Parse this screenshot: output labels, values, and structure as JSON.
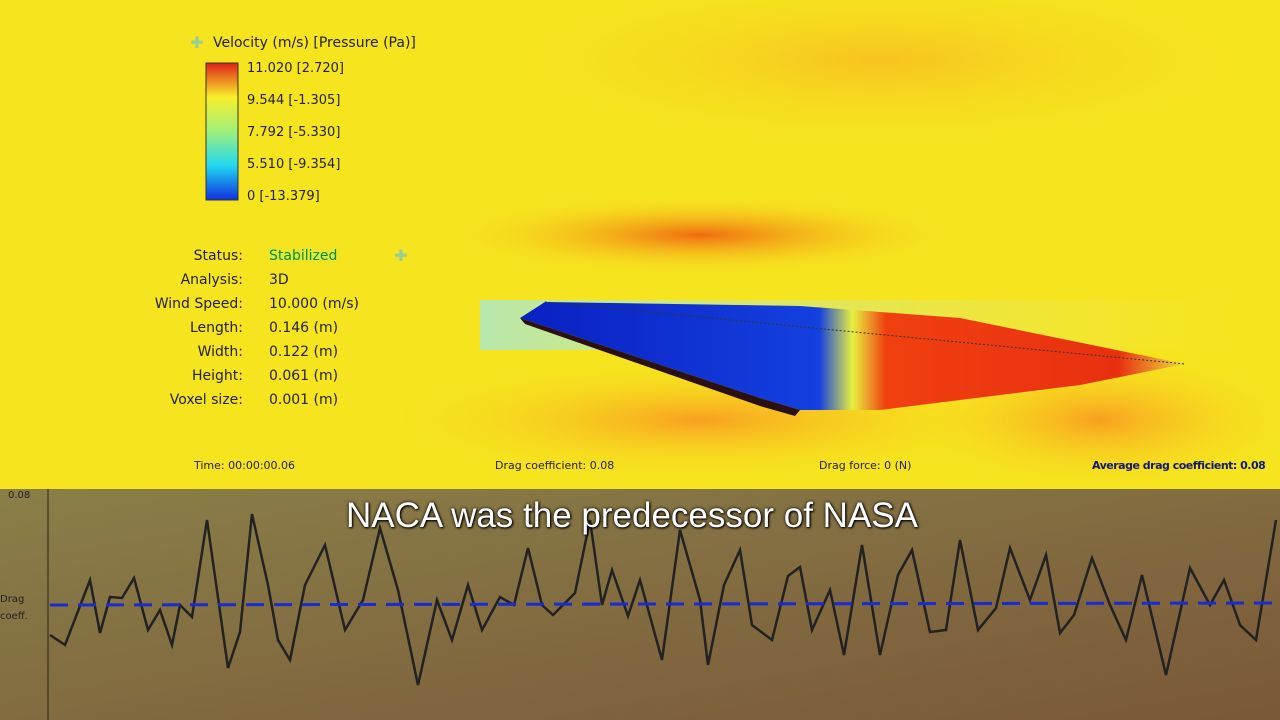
{
  "legend": {
    "title": "Velocity (m/s) [Pressure (Pa)]",
    "labels": [
      "11.020 [2.720]",
      "9.544 [-1.305]",
      "7.792 [-5.330]",
      "5.510 [-9.354]",
      "0 [-13.379]"
    ]
  },
  "status": {
    "rows": [
      [
        "Status:",
        "Stabilized"
      ],
      [
        "Analysis:",
        "3D"
      ],
      [
        "Wind Speed:",
        "10.000 (m/s)"
      ],
      [
        "Length:",
        "0.146 (m)"
      ],
      [
        "Width:",
        "0.122 (m)"
      ],
      [
        "Height:",
        "0.061 (m)"
      ],
      [
        "Voxel size:",
        "0.001 (m)"
      ]
    ]
  },
  "footer": {
    "time": "Time: 00:00:00.06",
    "drag_coefficient": "Drag coefficient: 0.08",
    "drag_force": "Drag force: 0 (N)",
    "average": "Average drag coefficient: 0.08"
  },
  "graph": {
    "y_tick": "0.08",
    "y_label_1": "Drag",
    "y_label_2": "coeff."
  },
  "caption": "NACA was the predecessor of NASA"
}
